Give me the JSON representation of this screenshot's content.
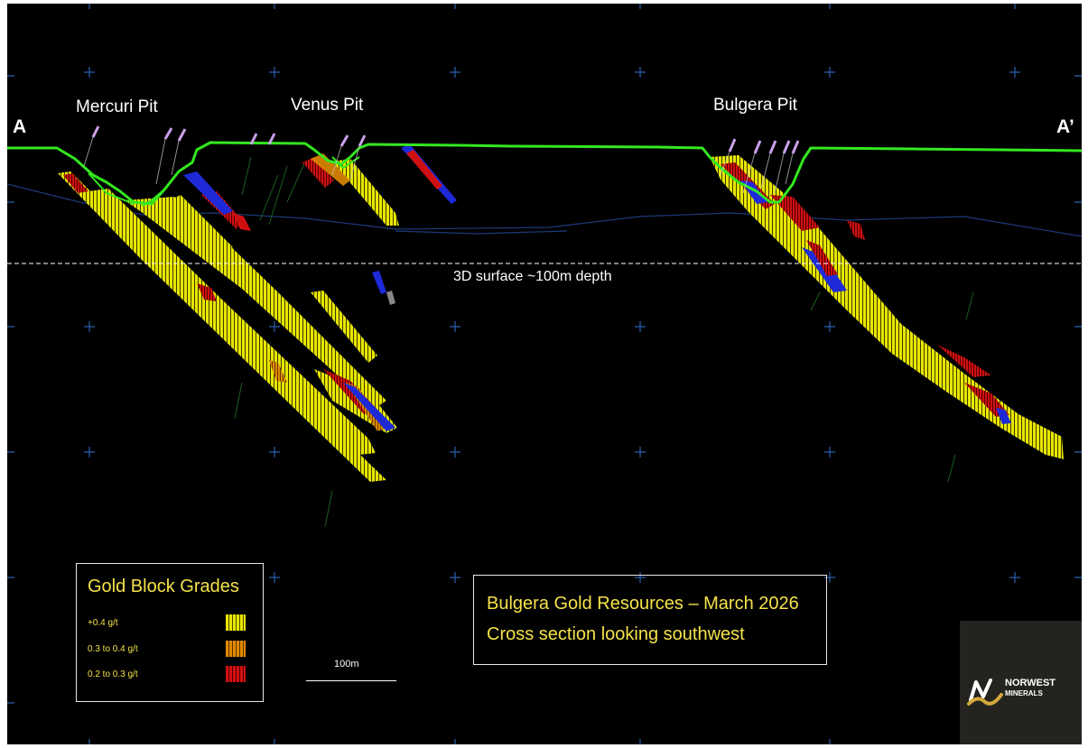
{
  "section_ends": {
    "start": "A",
    "end": "A’"
  },
  "pits": [
    {
      "name": "Mercuri Pit"
    },
    {
      "name": "Venus Pit"
    },
    {
      "name": "Bulgera Pit"
    }
  ],
  "surface_line_label": "3D surface ~100m depth",
  "legend": {
    "title": "Gold Block Grades",
    "items": [
      {
        "label": "+0.4 g/t",
        "color": "#e8e600"
      },
      {
        "label": "0.3 to 0.4 g/t",
        "color": "#e08a00"
      },
      {
        "label": "0.2 to 0.3 g/t",
        "color": "#d01010"
      }
    ]
  },
  "title_box": {
    "line1": "Bulgera Gold Resources – March 2026",
    "line2": "Cross section looking southwest"
  },
  "scale_bar": {
    "label": "100m"
  },
  "logo": {
    "name": "NORWEST",
    "sub": "MINERALS",
    "icon": "norwest-logo-icon"
  },
  "colors": {
    "background": "#000000",
    "topography": "#33e81f",
    "ore_high": "#e8e600",
    "ore_medium": "#e08a00",
    "ore_low": "#d01010",
    "lower_grade_fringe": "#1e2ad8",
    "drillholes": "#c8a0e8",
    "annotation_yellow": "#f5e24a",
    "grid": "#2a5fb0"
  }
}
